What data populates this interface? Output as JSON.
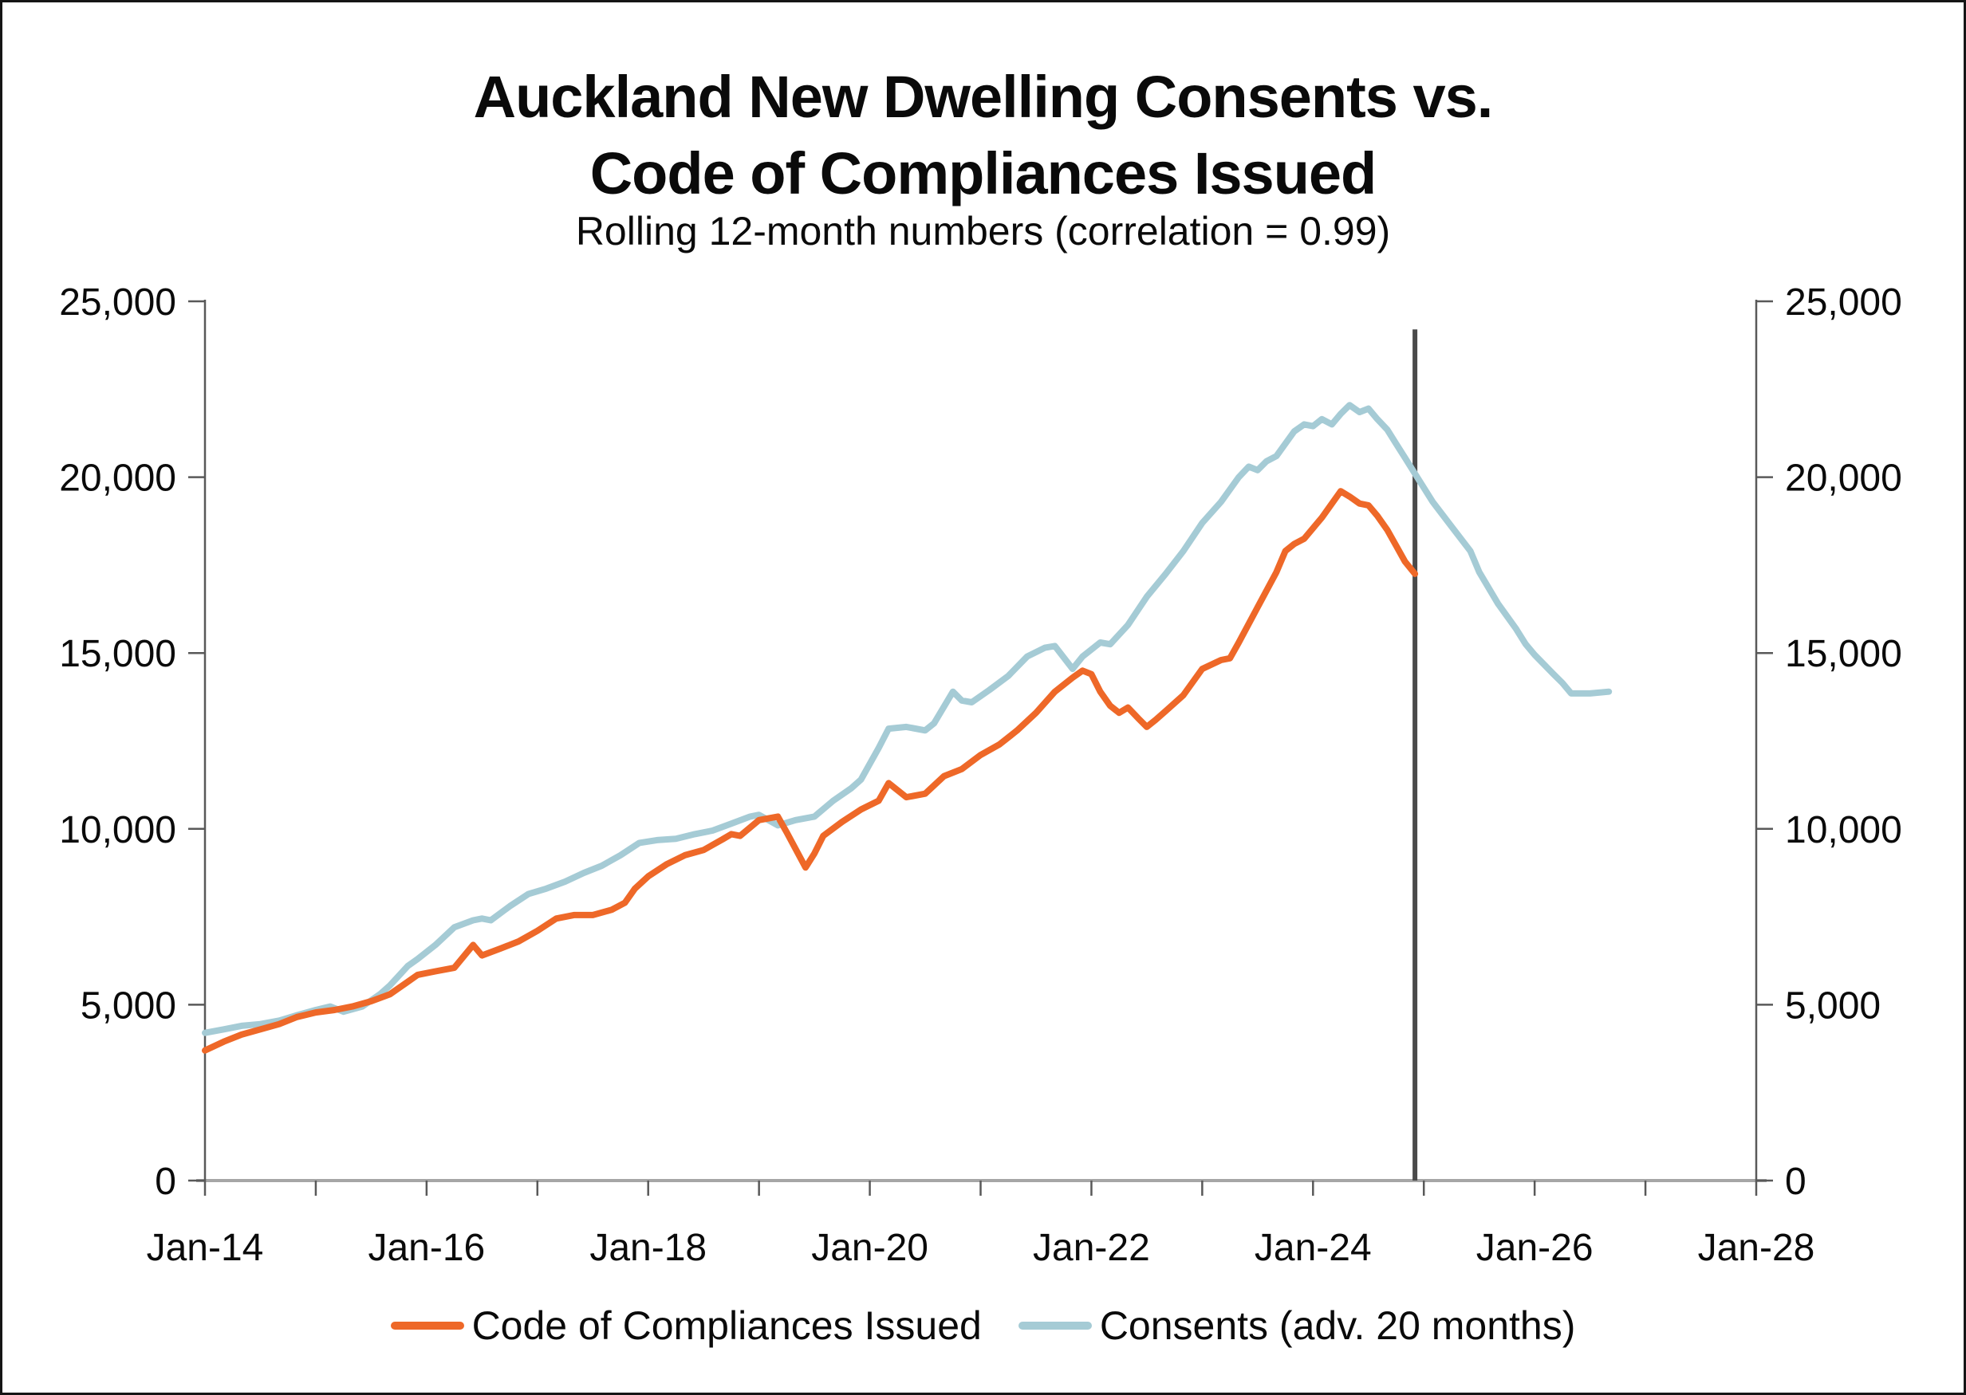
{
  "header": {
    "title_line1": "Auckland New Dwelling Consents vs.",
    "title_line2": "Code of Compliances Issued",
    "subtitle": "Rolling 12-month numbers (correlation = 0.99)"
  },
  "legend": [
    {
      "label": "Code of Compliances Issued",
      "color": "#EE6828"
    },
    {
      "label": "Consents (adv. 20 months)",
      "color": "#A5CBD5"
    }
  ],
  "colors": {
    "coc_line": "#EE6828",
    "consents_line": "#A5CBD5",
    "marker_line": "#4A4A4A",
    "axis": "#595959",
    "baseline": "#A6A6A6",
    "text": "#0A0A0A",
    "frame_border": "#151515"
  },
  "chart_data": {
    "type": "line",
    "title": "Auckland New Dwelling Consents vs. Code of Compliances Issued",
    "subtitle": "Rolling 12-month numbers (correlation = 0.99)",
    "correlation_shown": "0.99",
    "grid": "off",
    "legend_position": "bottom",
    "y_axis": {
      "range": [
        0,
        25000
      ],
      "sides": "both",
      "ticks": [
        {
          "value": 0,
          "label": "0"
        },
        {
          "value": 5000,
          "label": "5,000"
        },
        {
          "value": 10000,
          "label": "10,000"
        },
        {
          "value": 15000,
          "label": "15,000"
        },
        {
          "value": 20000,
          "label": "20,000"
        },
        {
          "value": 25000,
          "label": "25,000"
        }
      ]
    },
    "x_axis": {
      "range_years": [
        2014,
        2028
      ],
      "ticks": [
        {
          "year": 2014,
          "label": "Jan-14"
        },
        {
          "year": 2015,
          "label": ""
        },
        {
          "year": 2016,
          "label": "Jan-16"
        },
        {
          "year": 2017,
          "label": ""
        },
        {
          "year": 2018,
          "label": "Jan-18"
        },
        {
          "year": 2019,
          "label": ""
        },
        {
          "year": 2020,
          "label": "Jan-20"
        },
        {
          "year": 2021,
          "label": ""
        },
        {
          "year": 2022,
          "label": "Jan-22"
        },
        {
          "year": 2023,
          "label": ""
        },
        {
          "year": 2024,
          "label": "Jan-24"
        },
        {
          "year": 2025,
          "label": ""
        },
        {
          "year": 2026,
          "label": "Jan-26"
        },
        {
          "year": 2027,
          "label": ""
        },
        {
          "year": 2028,
          "label": "Jan-28"
        }
      ]
    },
    "marker_line": {
      "x_year": 2024.92,
      "top_value": 24200,
      "note": "vertical divider at latest Code of Compliance data point (~Dec-24)"
    },
    "series": [
      {
        "name": "Consents (adv. 20 months)",
        "color": "#A5CBD5",
        "points": [
          [
            2014.0,
            4200
          ],
          [
            2014.17,
            4300
          ],
          [
            2014.33,
            4400
          ],
          [
            2014.5,
            4450
          ],
          [
            2014.67,
            4550
          ],
          [
            2014.83,
            4700
          ],
          [
            2015.0,
            4850
          ],
          [
            2015.13,
            4950
          ],
          [
            2015.25,
            4800
          ],
          [
            2015.42,
            4950
          ],
          [
            2015.58,
            5300
          ],
          [
            2015.67,
            5550
          ],
          [
            2015.83,
            6100
          ],
          [
            2015.92,
            6300
          ],
          [
            2016.08,
            6700
          ],
          [
            2016.25,
            7200
          ],
          [
            2016.42,
            7400
          ],
          [
            2016.5,
            7450
          ],
          [
            2016.58,
            7400
          ],
          [
            2016.75,
            7800
          ],
          [
            2016.92,
            8150
          ],
          [
            2017.08,
            8300
          ],
          [
            2017.25,
            8500
          ],
          [
            2017.42,
            8750
          ],
          [
            2017.58,
            8950
          ],
          [
            2017.75,
            9250
          ],
          [
            2017.92,
            9600
          ],
          [
            2018.08,
            9680
          ],
          [
            2018.25,
            9720
          ],
          [
            2018.42,
            9850
          ],
          [
            2018.58,
            9950
          ],
          [
            2018.75,
            10150
          ],
          [
            2018.92,
            10350
          ],
          [
            2019.0,
            10400
          ],
          [
            2019.17,
            10100
          ],
          [
            2019.33,
            10250
          ],
          [
            2019.5,
            10350
          ],
          [
            2019.67,
            10800
          ],
          [
            2019.83,
            11150
          ],
          [
            2019.92,
            11400
          ],
          [
            2020.08,
            12300
          ],
          [
            2020.17,
            12850
          ],
          [
            2020.33,
            12900
          ],
          [
            2020.5,
            12800
          ],
          [
            2020.58,
            13000
          ],
          [
            2020.75,
            13900
          ],
          [
            2020.83,
            13650
          ],
          [
            2020.92,
            13600
          ],
          [
            2021.08,
            13950
          ],
          [
            2021.25,
            14350
          ],
          [
            2021.42,
            14900
          ],
          [
            2021.58,
            15150
          ],
          [
            2021.67,
            15200
          ],
          [
            2021.83,
            14550
          ],
          [
            2021.92,
            14900
          ],
          [
            2022.08,
            15300
          ],
          [
            2022.17,
            15250
          ],
          [
            2022.33,
            15800
          ],
          [
            2022.5,
            16600
          ],
          [
            2022.67,
            17250
          ],
          [
            2022.83,
            17900
          ],
          [
            2023.0,
            18700
          ],
          [
            2023.17,
            19300
          ],
          [
            2023.33,
            20000
          ],
          [
            2023.42,
            20300
          ],
          [
            2023.5,
            20200
          ],
          [
            2023.58,
            20450
          ],
          [
            2023.67,
            20600
          ],
          [
            2023.83,
            21300
          ],
          [
            2023.92,
            21500
          ],
          [
            2024.0,
            21450
          ],
          [
            2024.08,
            21650
          ],
          [
            2024.17,
            21500
          ],
          [
            2024.25,
            21800
          ],
          [
            2024.33,
            22050
          ],
          [
            2024.42,
            21850
          ],
          [
            2024.5,
            21950
          ],
          [
            2024.58,
            21650
          ],
          [
            2024.67,
            21350
          ],
          [
            2024.75,
            20950
          ],
          [
            2024.83,
            20550
          ],
          [
            2024.92,
            20100
          ],
          [
            2025.08,
            19300
          ],
          [
            2025.25,
            18600
          ],
          [
            2025.42,
            17900
          ],
          [
            2025.5,
            17300
          ],
          [
            2025.67,
            16400
          ],
          [
            2025.83,
            15700
          ],
          [
            2025.92,
            15250
          ],
          [
            2026.0,
            14950
          ],
          [
            2026.17,
            14400
          ],
          [
            2026.25,
            14150
          ],
          [
            2026.33,
            13850
          ],
          [
            2026.5,
            13850
          ],
          [
            2026.67,
            13900
          ]
        ]
      },
      {
        "name": "Code of Compliances Issued",
        "color": "#EE6828",
        "points": [
          [
            2014.0,
            3700
          ],
          [
            2014.17,
            3950
          ],
          [
            2014.33,
            4150
          ],
          [
            2014.5,
            4300
          ],
          [
            2014.67,
            4450
          ],
          [
            2014.83,
            4650
          ],
          [
            2015.0,
            4780
          ],
          [
            2015.17,
            4850
          ],
          [
            2015.33,
            4950
          ],
          [
            2015.5,
            5100
          ],
          [
            2015.67,
            5300
          ],
          [
            2015.83,
            5650
          ],
          [
            2015.92,
            5850
          ],
          [
            2016.08,
            5950
          ],
          [
            2016.25,
            6050
          ],
          [
            2016.42,
            6700
          ],
          [
            2016.5,
            6400
          ],
          [
            2016.67,
            6600
          ],
          [
            2016.83,
            6800
          ],
          [
            2017.0,
            7100
          ],
          [
            2017.17,
            7450
          ],
          [
            2017.33,
            7550
          ],
          [
            2017.5,
            7550
          ],
          [
            2017.67,
            7700
          ],
          [
            2017.79,
            7900
          ],
          [
            2017.88,
            8300
          ],
          [
            2018.0,
            8650
          ],
          [
            2018.17,
            9000
          ],
          [
            2018.33,
            9250
          ],
          [
            2018.5,
            9400
          ],
          [
            2018.67,
            9700
          ],
          [
            2018.75,
            9850
          ],
          [
            2018.83,
            9800
          ],
          [
            2019.0,
            10250
          ],
          [
            2019.17,
            10350
          ],
          [
            2019.25,
            9900
          ],
          [
            2019.42,
            8900
          ],
          [
            2019.5,
            9300
          ],
          [
            2019.58,
            9800
          ],
          [
            2019.75,
            10200
          ],
          [
            2019.92,
            10550
          ],
          [
            2020.08,
            10800
          ],
          [
            2020.17,
            11300
          ],
          [
            2020.25,
            11100
          ],
          [
            2020.33,
            10900
          ],
          [
            2020.5,
            11000
          ],
          [
            2020.67,
            11500
          ],
          [
            2020.83,
            11700
          ],
          [
            2021.0,
            12100
          ],
          [
            2021.17,
            12400
          ],
          [
            2021.33,
            12800
          ],
          [
            2021.5,
            13300
          ],
          [
            2021.67,
            13900
          ],
          [
            2021.83,
            14300
          ],
          [
            2021.92,
            14500
          ],
          [
            2022.0,
            14400
          ],
          [
            2022.08,
            13900
          ],
          [
            2022.17,
            13500
          ],
          [
            2022.25,
            13300
          ],
          [
            2022.33,
            13450
          ],
          [
            2022.42,
            13150
          ],
          [
            2022.5,
            12900
          ],
          [
            2022.58,
            13100
          ],
          [
            2022.67,
            13350
          ],
          [
            2022.83,
            13800
          ],
          [
            2023.0,
            14550
          ],
          [
            2023.17,
            14800
          ],
          [
            2023.25,
            14850
          ],
          [
            2023.33,
            15300
          ],
          [
            2023.5,
            16300
          ],
          [
            2023.67,
            17300
          ],
          [
            2023.75,
            17900
          ],
          [
            2023.83,
            18100
          ],
          [
            2023.92,
            18250
          ],
          [
            2024.08,
            18850
          ],
          [
            2024.25,
            19600
          ],
          [
            2024.33,
            19450
          ],
          [
            2024.42,
            19250
          ],
          [
            2024.5,
            19200
          ],
          [
            2024.58,
            18900
          ],
          [
            2024.67,
            18500
          ],
          [
            2024.75,
            18050
          ],
          [
            2024.83,
            17600
          ],
          [
            2024.92,
            17250
          ]
        ]
      }
    ]
  }
}
